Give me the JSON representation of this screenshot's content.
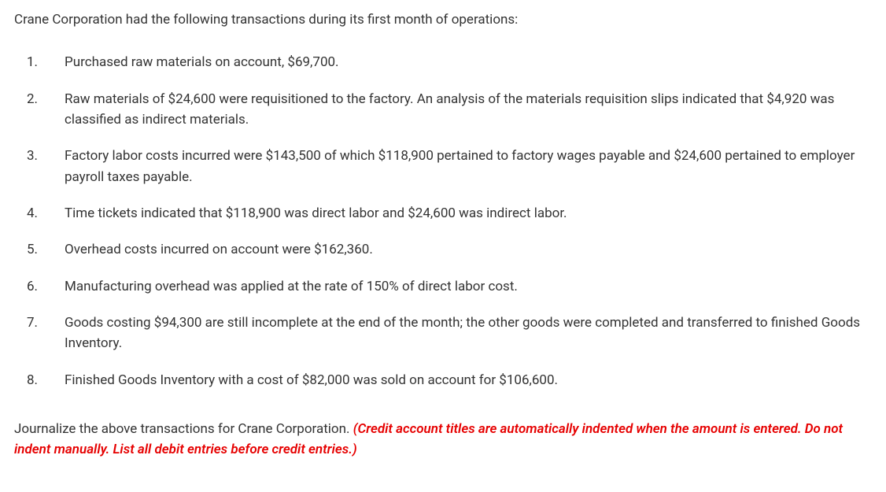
{
  "intro": "Crane Corporation had the following transactions during its first month of operations:",
  "items": [
    {
      "n": "1.",
      "t": "Purchased raw materials on account, $69,700."
    },
    {
      "n": "2.",
      "t": "Raw materials of $24,600 were requisitioned to the factory. An analysis of the materials requisition slips indicated that $4,920 was classified as indirect materials."
    },
    {
      "n": "3.",
      "t": "Factory labor costs incurred were $143,500 of which $118,900 pertained to factory wages payable and $24,600 pertained to employer payroll taxes payable."
    },
    {
      "n": "4.",
      "t": "Time tickets indicated that $118,900 was direct labor and $24,600 was indirect labor."
    },
    {
      "n": "5.",
      "t": "Overhead costs incurred on account were $162,360."
    },
    {
      "n": "6.",
      "t": "Manufacturing overhead was applied at the rate of 150% of direct labor cost."
    },
    {
      "n": "7.",
      "t": "Goods costing $94,300 are still incomplete at the end of the month; the other goods were completed and transferred to finished Goods Inventory."
    },
    {
      "n": "8.",
      "t": "Finished Goods Inventory with a cost of $82,000 was sold on account for $106,600."
    }
  ],
  "prompt_plain": "Journalize the above transactions for Crane Corporation. ",
  "prompt_red": "(Credit account titles are automatically indented when the amount is entered. Do not indent manually. List all debit entries before credit entries.)"
}
